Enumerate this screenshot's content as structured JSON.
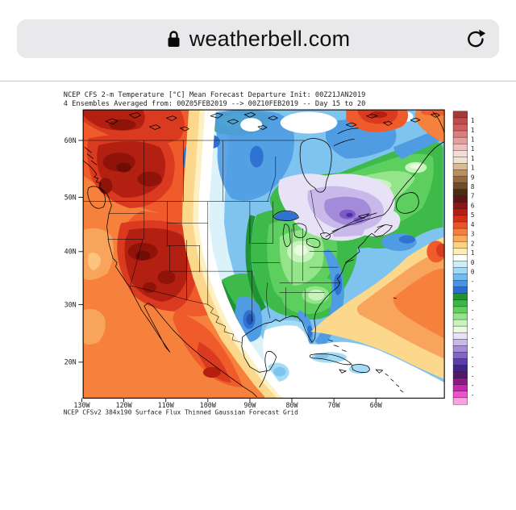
{
  "browser": {
    "url": "weatherbell.com"
  },
  "figure": {
    "title_line1": "NCEP CFS 2-m Temperature [°C] Mean Forecast Departure Init: 00Z21JAN2019",
    "title_line2": "4 Ensembles Averaged from: 00Z05FEB2019 --> 00Z10FEB2019 -- Day 15 to 20",
    "caption": "NCEP CFSv2 384x190 Surface Flux Thinned Gaussian Forecast Grid",
    "axes": {
      "lat_labels": [
        "60N",
        "50N",
        "40N",
        "30N",
        "20N"
      ],
      "lon_labels": [
        "130W",
        "120W",
        "110W",
        "100W",
        "90W",
        "80W",
        "70W",
        "60W"
      ]
    },
    "colorbar": {
      "colors": [
        "#a33a3a",
        "#c14b4b",
        "#d05e5e",
        "#df7c7c",
        "#e99e9e",
        "#f1bdbd",
        "#f7dbd6",
        "#efe3d1",
        "#d9ba92",
        "#bb8e5c",
        "#986a3b",
        "#714b26",
        "#4c2d13",
        "#641414",
        "#8f1616",
        "#b81d14",
        "#d92e16",
        "#ea5527",
        "#f47f3e",
        "#f9a95c",
        "#fcd284",
        "#fdedb4",
        "#ffffff",
        "#cdeef9",
        "#a3d9f4",
        "#74baed",
        "#4b93df",
        "#2f6dcd",
        "#1f9434",
        "#3db448",
        "#63cf60",
        "#95e48b",
        "#c8f3ba",
        "#e8fbdc",
        "#e7e2f6",
        "#c9b9eb",
        "#a68ddb",
        "#8164c9",
        "#5c3cb0",
        "#3f2390",
        "#581668",
        "#8f1787",
        "#c924b2",
        "#ef50cd",
        "#f9a2e2"
      ],
      "visible_labels": [
        "1",
        "1",
        "1",
        "1",
        "1",
        "1",
        "9",
        "8",
        "7",
        "6",
        "5",
        "4",
        "3",
        "2",
        "1",
        "0",
        "0",
        "-",
        "-",
        "-",
        "-",
        "-",
        "-",
        "-",
        "-",
        "-",
        "-",
        "-",
        "-",
        "-"
      ]
    }
  },
  "palette": {
    "orange": "#f6813d",
    "orangeLight": "#f9a45c",
    "orangeLighter": "#fcc47e",
    "redOrange": "#ef5b2b",
    "red": "#da3b20",
    "darkRed": "#b32012",
    "darkerRed": "#8f1309",
    "darkestRed": "#6e0c05",
    "yellow": "#fbd88c",
    "paleYellow": "#fdf1c4",
    "white": "#ffffff",
    "cyanPale": "#dbf2fb",
    "cyanLight": "#a5dcf5",
    "blueLight": "#7fc3ef",
    "blue": "#4f9ce2",
    "blueDeep": "#2f72d2",
    "blueDeeper": "#2254b4",
    "greenDark": "#1e9433",
    "green": "#3eba4b",
    "greenMid": "#5ccf5e",
    "greenLight": "#94e48a",
    "greenPale": "#c9f3bc",
    "greenPaler": "#e9fbde",
    "lavenderPale": "#e7e2f6",
    "lavender": "#c8b9ea",
    "purple": "#a38bd9",
    "purpleDeep": "#7c5bc6",
    "purpleDark": "#4f2fa6",
    "pillBg": "#e9e9eb",
    "urlText": "#111111",
    "separator": "#c8c8cc"
  }
}
